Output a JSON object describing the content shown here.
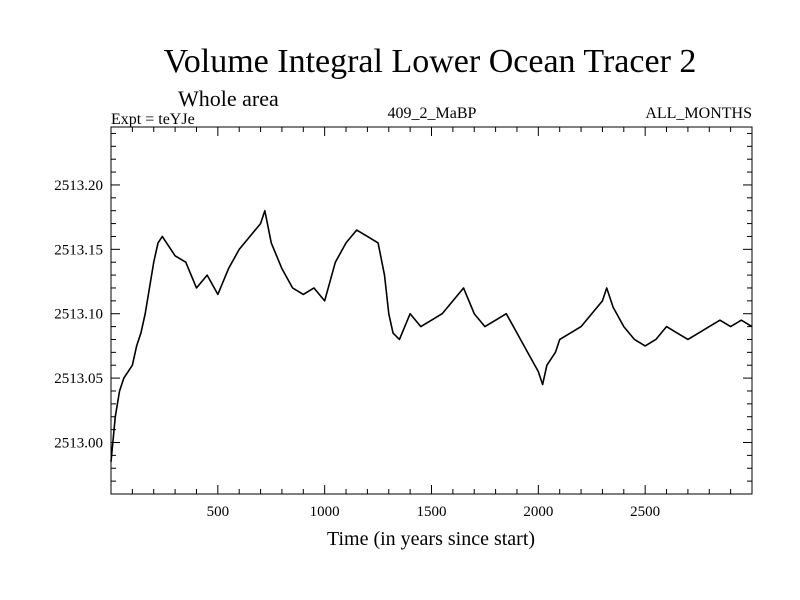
{
  "chart_data": {
    "type": "line",
    "title": "Volume Integral Lower Ocean Tracer 2",
    "subtitle": "Whole area",
    "annotations": {
      "experiment": "Expt = teYJe",
      "run": "409_2_MaBP",
      "months": "ALL_MONTHS"
    },
    "xlabel": "Time (in years since start)",
    "ylabel": "",
    "xlim": [
      0,
      3000
    ],
    "ylim": [
      2512.96,
      2513.245
    ],
    "x_ticks": [
      500,
      1000,
      1500,
      2000,
      2500
    ],
    "x_tick_labels": [
      "500",
      "1000",
      "1500",
      "2000",
      "2500"
    ],
    "y_ticks": [
      2513.0,
      2513.05,
      2513.1,
      2513.15,
      2513.2
    ],
    "y_tick_labels": [
      "2513.00",
      "2513.05",
      "2513.10",
      "2513.15",
      "2513.20"
    ],
    "grid": false,
    "series": [
      {
        "name": "Volume Integral Lower Ocean Tracer 2",
        "color": "#000000",
        "x": [
          0,
          20,
          40,
          60,
          80,
          100,
          120,
          140,
          160,
          180,
          200,
          220,
          240,
          260,
          280,
          300,
          350,
          400,
          450,
          500,
          550,
          600,
          650,
          700,
          720,
          750,
          800,
          850,
          900,
          950,
          1000,
          1050,
          1100,
          1150,
          1200,
          1250,
          1280,
          1300,
          1320,
          1350,
          1400,
          1450,
          1500,
          1550,
          1600,
          1650,
          1700,
          1750,
          1800,
          1850,
          1900,
          1950,
          2000,
          2020,
          2040,
          2060,
          2080,
          2100,
          2150,
          2200,
          2250,
          2300,
          2320,
          2350,
          2400,
          2450,
          2500,
          2550,
          2600,
          2650,
          2700,
          2750,
          2800,
          2850,
          2900,
          2950,
          3000
        ],
        "values": [
          2512.985,
          2513.02,
          2513.04,
          2513.05,
          2513.055,
          2513.06,
          2513.075,
          2513.085,
          2513.1,
          2513.12,
          2513.14,
          2513.155,
          2513.16,
          2513.155,
          2513.15,
          2513.145,
          2513.14,
          2513.12,
          2513.13,
          2513.115,
          2513.135,
          2513.15,
          2513.16,
          2513.17,
          2513.18,
          2513.155,
          2513.135,
          2513.12,
          2513.115,
          2513.12,
          2513.11,
          2513.14,
          2513.155,
          2513.165,
          2513.16,
          2513.155,
          2513.13,
          2513.1,
          2513.085,
          2513.08,
          2513.1,
          2513.09,
          2513.095,
          2513.1,
          2513.11,
          2513.12,
          2513.1,
          2513.09,
          2513.095,
          2513.1,
          2513.085,
          2513.07,
          2513.055,
          2513.045,
          2513.06,
          2513.065,
          2513.07,
          2513.08,
          2513.085,
          2513.09,
          2513.1,
          2513.11,
          2513.12,
          2513.105,
          2513.09,
          2513.08,
          2513.075,
          2513.08,
          2513.09,
          2513.085,
          2513.08,
          2513.085,
          2513.09,
          2513.095,
          2513.09,
          2513.095,
          2513.09
        ]
      }
    ]
  }
}
